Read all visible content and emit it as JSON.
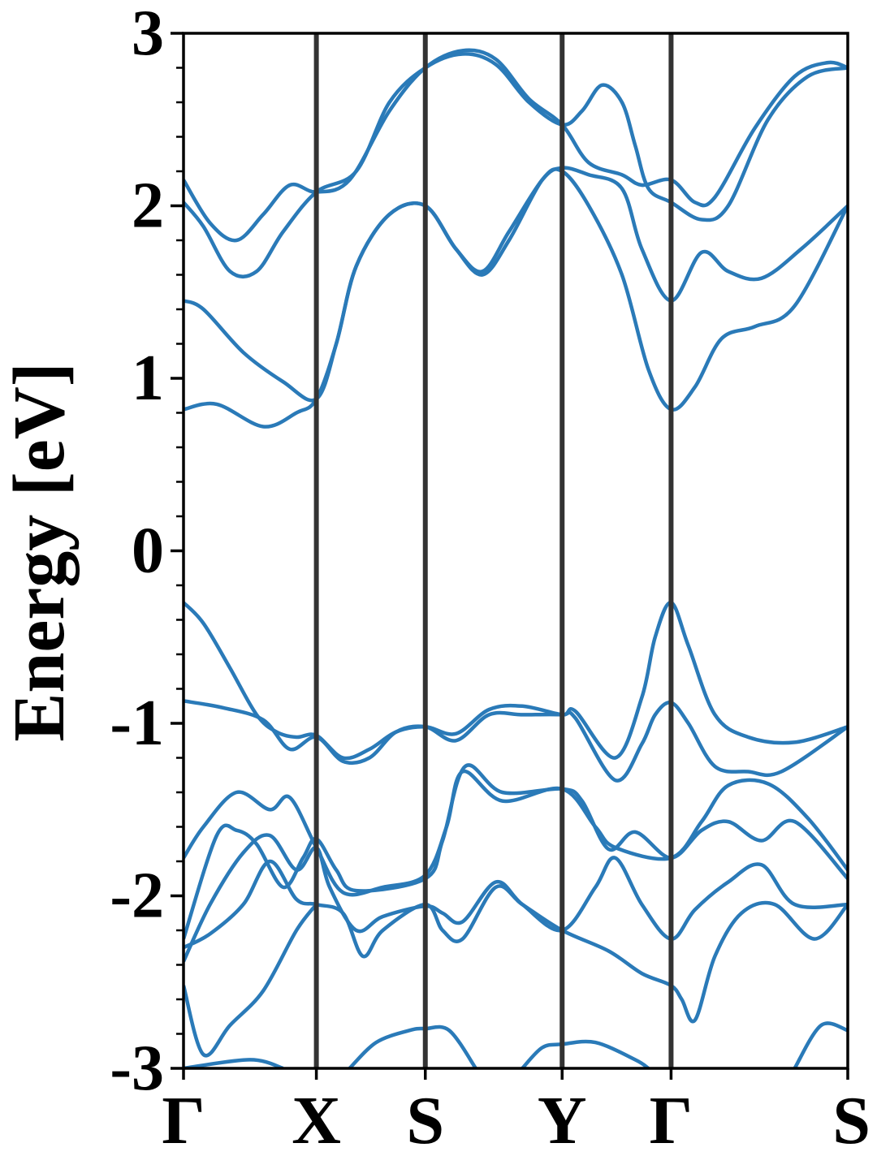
{
  "chart_data": {
    "type": "line",
    "title": "",
    "xlabel": "",
    "ylabel": "Energy [eV]",
    "ylim": [
      -3,
      3
    ],
    "y_ticks": [
      {
        "value": 3,
        "label": "3"
      },
      {
        "value": 2,
        "label": "2"
      },
      {
        "value": 1,
        "label": "1"
      },
      {
        "value": 0,
        "label": "0"
      },
      {
        "value": -1,
        "label": "-1"
      },
      {
        "value": -2,
        "label": "-2"
      },
      {
        "value": -3,
        "label": "-3"
      }
    ],
    "y_minor_step": 0.2,
    "xlim": [
      0,
      5
    ],
    "high_symmetry_points": [
      {
        "label": "Γ",
        "x": 0
      },
      {
        "label": "X",
        "x": 1
      },
      {
        "label": "S",
        "x": 1.82
      },
      {
        "label": "Y",
        "x": 2.85
      },
      {
        "label": "Γ",
        "x": 3.67
      },
      {
        "label": "S",
        "x": 5
      }
    ],
    "grid": false,
    "legend": "none",
    "colors": {
      "band": "#2a7ab8",
      "separator": "#333333",
      "axes": "#000000"
    },
    "series": [
      {
        "values": [
          [
            0,
            -0.3
          ],
          [
            0.15,
            -0.42
          ],
          [
            0.35,
            -0.68
          ],
          [
            0.55,
            -0.95
          ],
          [
            0.7,
            -1.05
          ],
          [
            0.85,
            -1.08
          ],
          [
            1,
            -1.07
          ],
          [
            1.2,
            -1.2
          ],
          [
            1.4,
            -1.15
          ],
          [
            1.6,
            -1.05
          ],
          [
            1.82,
            -1.02
          ],
          [
            2.05,
            -1.06
          ],
          [
            2.3,
            -0.92
          ],
          [
            2.55,
            -0.9
          ],
          [
            2.85,
            -0.95
          ],
          [
            2.95,
            -0.93
          ],
          [
            3.25,
            -1.2
          ],
          [
            3.45,
            -0.85
          ],
          [
            3.55,
            -0.5
          ],
          [
            3.67,
            -0.3
          ],
          [
            3.8,
            -0.55
          ],
          [
            4.0,
            -0.95
          ],
          [
            4.25,
            -1.08
          ],
          [
            4.6,
            -1.11
          ],
          [
            5,
            -1.02
          ]
        ]
      },
      {
        "values": [
          [
            0,
            -0.87
          ],
          [
            0.3,
            -0.91
          ],
          [
            0.6,
            -0.98
          ],
          [
            0.8,
            -1.15
          ],
          [
            1,
            -1.08
          ],
          [
            1.2,
            -1.22
          ],
          [
            1.4,
            -1.2
          ],
          [
            1.6,
            -1.05
          ],
          [
            1.82,
            -1.02
          ],
          [
            2.05,
            -1.1
          ],
          [
            2.3,
            -0.95
          ],
          [
            2.55,
            -0.95
          ],
          [
            2.85,
            -0.95
          ],
          [
            2.95,
            -0.97
          ],
          [
            3.25,
            -1.33
          ],
          [
            3.45,
            -1.12
          ],
          [
            3.55,
            -0.95
          ],
          [
            3.67,
            -0.88
          ],
          [
            3.8,
            -1.0
          ],
          [
            4.0,
            -1.25
          ],
          [
            4.25,
            -1.28
          ],
          [
            4.5,
            -1.28
          ],
          [
            5,
            -1.02
          ]
        ]
      },
      {
        "values": [
          [
            0,
            -1.78
          ],
          [
            0.15,
            -1.6
          ],
          [
            0.4,
            -1.4
          ],
          [
            0.65,
            -1.5
          ],
          [
            0.8,
            -1.43
          ],
          [
            1,
            -1.72
          ],
          [
            1.2,
            -1.98
          ],
          [
            1.5,
            -1.95
          ],
          [
            1.82,
            -1.88
          ],
          [
            1.98,
            -1.6
          ],
          [
            2.1,
            -1.28
          ],
          [
            2.4,
            -1.45
          ],
          [
            2.85,
            -1.38
          ],
          [
            3.1,
            -1.6
          ],
          [
            3.25,
            -1.72
          ],
          [
            3.67,
            -1.78
          ],
          [
            3.9,
            -1.57
          ],
          [
            4.1,
            -1.36
          ],
          [
            4.4,
            -1.35
          ],
          [
            4.7,
            -1.55
          ],
          [
            5,
            -1.85
          ]
        ]
      },
      {
        "values": [
          [
            0,
            -2.25
          ],
          [
            0.25,
            -1.65
          ],
          [
            0.4,
            -1.62
          ],
          [
            0.55,
            -1.7
          ],
          [
            0.75,
            -1.95
          ],
          [
            0.9,
            -1.78
          ],
          [
            1,
            -1.67
          ],
          [
            1.15,
            -1.85
          ],
          [
            1.3,
            -1.97
          ],
          [
            1.82,
            -1.9
          ],
          [
            1.95,
            -1.68
          ],
          [
            2.12,
            -1.25
          ],
          [
            2.4,
            -1.4
          ],
          [
            2.85,
            -1.38
          ],
          [
            3.0,
            -1.45
          ],
          [
            3.2,
            -1.73
          ],
          [
            3.4,
            -1.63
          ],
          [
            3.67,
            -1.78
          ],
          [
            3.9,
            -1.62
          ],
          [
            4.1,
            -1.57
          ],
          [
            4.35,
            -1.68
          ],
          [
            4.6,
            -1.57
          ],
          [
            5,
            -1.9
          ]
        ]
      },
      {
        "values": [
          [
            0,
            -2.38
          ],
          [
            0.2,
            -2.05
          ],
          [
            0.45,
            -1.75
          ],
          [
            0.65,
            -1.65
          ],
          [
            0.85,
            -1.85
          ],
          [
            1,
            -1.72
          ],
          [
            1.1,
            -1.95
          ],
          [
            1.3,
            -2.2
          ],
          [
            1.5,
            -2.12
          ],
          [
            1.82,
            -2.06
          ],
          [
            1.95,
            -2.1
          ],
          [
            2.1,
            -2.15
          ],
          [
            2.35,
            -1.92
          ],
          [
            2.55,
            -2.05
          ],
          [
            2.85,
            -2.2
          ],
          [
            3.1,
            -1.95
          ],
          [
            3.25,
            -1.78
          ],
          [
            3.45,
            -2.05
          ],
          [
            3.67,
            -2.25
          ],
          [
            3.85,
            -2.08
          ],
          [
            4.1,
            -1.92
          ],
          [
            4.35,
            -1.82
          ],
          [
            4.6,
            -2.05
          ],
          [
            5,
            -2.05
          ]
        ]
      },
      {
        "values": [
          [
            0,
            -2.3
          ],
          [
            0.2,
            -2.22
          ],
          [
            0.45,
            -2.05
          ],
          [
            0.65,
            -1.8
          ],
          [
            0.85,
            -2.02
          ],
          [
            1,
            -2.05
          ],
          [
            1.2,
            -2.1
          ],
          [
            1.35,
            -2.35
          ],
          [
            1.5,
            -2.2
          ],
          [
            1.82,
            -2.05
          ],
          [
            1.95,
            -2.2
          ],
          [
            2.1,
            -2.25
          ],
          [
            2.35,
            -1.95
          ],
          [
            2.55,
            -2.05
          ],
          [
            2.85,
            -2.2
          ],
          [
            3.2,
            -2.32
          ],
          [
            3.45,
            -2.45
          ],
          [
            3.67,
            -2.52
          ],
          [
            3.75,
            -2.6
          ],
          [
            3.85,
            -2.72
          ],
          [
            4.0,
            -2.35
          ],
          [
            4.2,
            -2.1
          ],
          [
            4.45,
            -2.05
          ],
          [
            4.75,
            -2.25
          ],
          [
            5,
            -2.05
          ]
        ]
      },
      {
        "values": [
          [
            0,
            -2.52
          ],
          [
            0.15,
            -2.92
          ],
          [
            0.35,
            -2.75
          ],
          [
            0.6,
            -2.55
          ],
          [
            0.85,
            -2.2
          ],
          [
            1,
            -2.05
          ]
        ]
      },
      {
        "values": [
          [
            0,
            -3.0
          ],
          [
            0.5,
            -2.95
          ],
          [
            0.75,
            -3.0
          ]
        ]
      },
      {
        "values": [
          [
            1.25,
            -3.0
          ],
          [
            1.45,
            -2.85
          ],
          [
            1.7,
            -2.78
          ],
          [
            1.82,
            -2.77
          ],
          [
            2.0,
            -2.78
          ],
          [
            2.2,
            -3.0
          ]
        ]
      },
      {
        "values": [
          [
            2.55,
            -3.0
          ],
          [
            2.7,
            -2.88
          ],
          [
            2.85,
            -2.86
          ],
          [
            3.1,
            -2.85
          ],
          [
            3.4,
            -2.95
          ],
          [
            3.5,
            -3.0
          ]
        ]
      },
      {
        "values": [
          [
            4.6,
            -3.0
          ],
          [
            4.8,
            -2.75
          ],
          [
            5,
            -2.78
          ]
        ]
      },
      {
        "values": [
          [
            0,
            0.82
          ],
          [
            0.25,
            0.85
          ],
          [
            0.6,
            0.72
          ],
          [
            0.85,
            0.8
          ],
          [
            1,
            0.88
          ],
          [
            1.15,
            1.2
          ],
          [
            1.3,
            1.65
          ],
          [
            1.55,
            1.95
          ],
          [
            1.82,
            2.0
          ],
          [
            2.05,
            1.75
          ],
          [
            2.25,
            1.6
          ],
          [
            2.45,
            1.8
          ],
          [
            2.7,
            2.15
          ],
          [
            2.85,
            2.2
          ],
          [
            3.05,
            2.0
          ],
          [
            3.3,
            1.6
          ],
          [
            3.5,
            1.05
          ],
          [
            3.67,
            0.82
          ],
          [
            3.85,
            0.95
          ],
          [
            4.05,
            1.23
          ],
          [
            4.3,
            1.3
          ],
          [
            4.6,
            1.42
          ],
          [
            5,
            2.0
          ]
        ]
      },
      {
        "values": [
          [
            0,
            1.45
          ],
          [
            0.15,
            1.4
          ],
          [
            0.45,
            1.15
          ],
          [
            0.75,
            0.98
          ],
          [
            1,
            0.88
          ],
          [
            1.15,
            1.2
          ],
          [
            1.3,
            1.65
          ],
          [
            1.55,
            1.95
          ],
          [
            1.82,
            2.0
          ],
          [
            2.05,
            1.75
          ],
          [
            2.25,
            1.62
          ],
          [
            2.45,
            1.85
          ],
          [
            2.7,
            2.15
          ],
          [
            2.85,
            2.22
          ],
          [
            3.05,
            2.18
          ],
          [
            3.3,
            2.1
          ],
          [
            3.45,
            1.75
          ],
          [
            3.67,
            1.45
          ],
          [
            3.9,
            1.73
          ],
          [
            4.1,
            1.62
          ],
          [
            4.35,
            1.58
          ],
          [
            4.65,
            1.75
          ],
          [
            5,
            2.0
          ]
        ]
      },
      {
        "values": [
          [
            0,
            2.02
          ],
          [
            0.15,
            1.88
          ],
          [
            0.35,
            1.62
          ],
          [
            0.55,
            1.62
          ],
          [
            0.75,
            1.85
          ],
          [
            1,
            2.08
          ],
          [
            1.3,
            2.2
          ],
          [
            1.55,
            2.6
          ],
          [
            1.82,
            2.8
          ],
          [
            2.1,
            2.88
          ],
          [
            2.35,
            2.82
          ],
          [
            2.6,
            2.6
          ],
          [
            2.85,
            2.47
          ],
          [
            3.0,
            2.55
          ],
          [
            3.15,
            2.7
          ],
          [
            3.3,
            2.6
          ],
          [
            3.4,
            2.35
          ],
          [
            3.5,
            2.1
          ],
          [
            3.67,
            2.02
          ],
          [
            3.9,
            1.92
          ],
          [
            4.1,
            2.0
          ],
          [
            4.4,
            2.5
          ],
          [
            4.7,
            2.75
          ],
          [
            5,
            2.8
          ]
        ]
      },
      {
        "values": [
          [
            0,
            2.15
          ],
          [
            0.2,
            1.9
          ],
          [
            0.4,
            1.8
          ],
          [
            0.6,
            1.95
          ],
          [
            0.8,
            2.12
          ],
          [
            1,
            2.08
          ],
          [
            1.25,
            2.15
          ],
          [
            1.55,
            2.55
          ],
          [
            1.82,
            2.8
          ],
          [
            2.1,
            2.9
          ],
          [
            2.35,
            2.85
          ],
          [
            2.6,
            2.62
          ],
          [
            2.85,
            2.47
          ],
          [
            3.05,
            2.25
          ],
          [
            3.3,
            2.18
          ],
          [
            3.45,
            2.12
          ],
          [
            3.67,
            2.15
          ],
          [
            3.85,
            2.02
          ],
          [
            4.0,
            2.05
          ],
          [
            4.3,
            2.45
          ],
          [
            4.6,
            2.75
          ],
          [
            4.85,
            2.83
          ],
          [
            5,
            2.8
          ]
        ]
      }
    ]
  }
}
